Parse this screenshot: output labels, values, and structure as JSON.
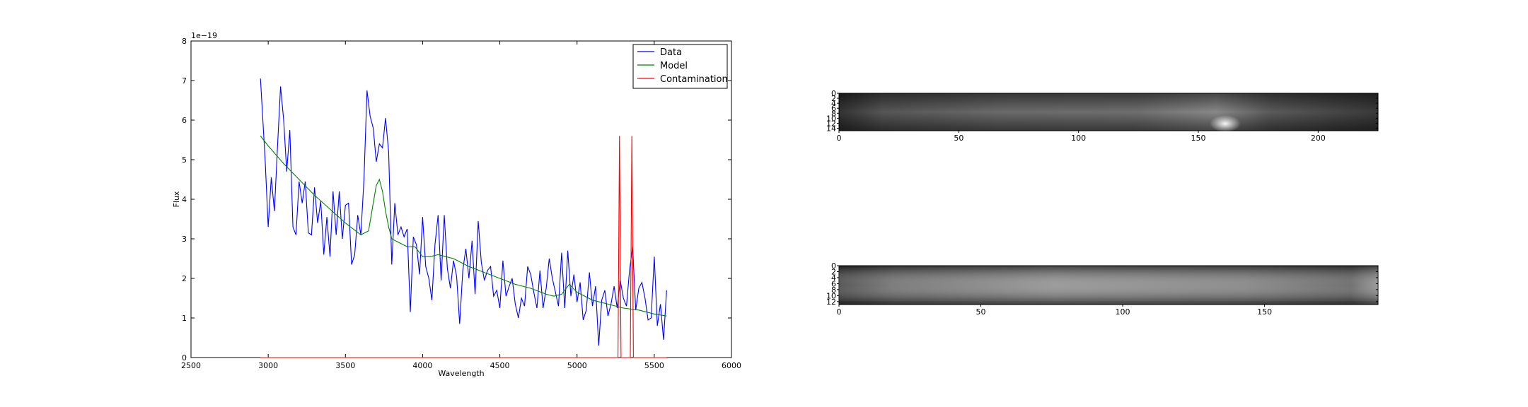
{
  "chart_data": [
    {
      "type": "line",
      "xlabel": "Wavelength",
      "ylabel": "Flux",
      "offset_text": "1e−19",
      "xlim": [
        2500,
        6000
      ],
      "ylim": [
        0,
        8
      ],
      "xticks": [
        2500,
        3000,
        3500,
        4000,
        4500,
        5000,
        5500,
        6000
      ],
      "yticks": [
        0,
        1,
        2,
        3,
        4,
        5,
        6,
        7,
        8
      ],
      "grid": false,
      "legend": "top-right",
      "series": [
        {
          "name": "Data",
          "color": "#0000ff",
          "x": [
            2950,
            2980,
            3000,
            3020,
            3040,
            3060,
            3080,
            3100,
            3120,
            3140,
            3160,
            3180,
            3200,
            3220,
            3240,
            3260,
            3280,
            3300,
            3320,
            3340,
            3360,
            3380,
            3400,
            3420,
            3440,
            3460,
            3480,
            3500,
            3520,
            3540,
            3560,
            3580,
            3600,
            3620,
            3640,
            3660,
            3680,
            3700,
            3720,
            3740,
            3760,
            3780,
            3800,
            3820,
            3840,
            3860,
            3880,
            3900,
            3920,
            3940,
            3960,
            3980,
            4000,
            4020,
            4040,
            4060,
            4080,
            4100,
            4120,
            4140,
            4160,
            4180,
            4200,
            4220,
            4240,
            4260,
            4280,
            4300,
            4320,
            4340,
            4360,
            4380,
            4400,
            4420,
            4440,
            4460,
            4480,
            4500,
            4520,
            4540,
            4560,
            4580,
            4600,
            4620,
            4640,
            4660,
            4680,
            4700,
            4720,
            4740,
            4760,
            4780,
            4800,
            4820,
            4840,
            4860,
            4880,
            4900,
            4920,
            4940,
            4960,
            4980,
            5000,
            5020,
            5040,
            5060,
            5080,
            5100,
            5120,
            5140,
            5160,
            5180,
            5200,
            5220,
            5240,
            5260,
            5280,
            5300,
            5320,
            5340,
            5360,
            5380,
            5400,
            5420,
            5440,
            5460,
            5480,
            5500,
            5520,
            5540,
            5560,
            5580
          ],
          "y": [
            7.05,
            5.0,
            3.3,
            4.55,
            3.7,
            5.3,
            6.85,
            6.0,
            4.7,
            5.75,
            3.3,
            3.1,
            4.45,
            3.9,
            4.45,
            3.15,
            3.1,
            4.3,
            3.4,
            3.95,
            2.6,
            3.55,
            2.55,
            4.2,
            3.1,
            4.2,
            3.0,
            3.85,
            3.9,
            2.35,
            2.6,
            3.6,
            3.1,
            4.5,
            6.75,
            6.1,
            5.8,
            4.95,
            5.4,
            5.3,
            6.05,
            5.2,
            2.35,
            3.9,
            3.1,
            3.3,
            3.05,
            3.25,
            1.15,
            3.05,
            2.85,
            2.1,
            3.55,
            2.3,
            2.0,
            1.45,
            2.85,
            3.6,
            1.95,
            3.6,
            2.25,
            1.75,
            2.45,
            2.05,
            0.85,
            2.2,
            2.75,
            2.0,
            2.95,
            1.6,
            3.45,
            2.4,
            1.95,
            2.2,
            2.3,
            1.55,
            1.7,
            1.25,
            2.45,
            1.55,
            1.8,
            2.0,
            1.35,
            1.0,
            1.5,
            1.3,
            2.3,
            2.1,
            1.65,
            1.25,
            2.2,
            1.25,
            1.75,
            2.5,
            2.0,
            1.65,
            1.3,
            2.65,
            1.25,
            2.7,
            1.55,
            2.1,
            1.4,
            1.9,
            0.95,
            1.2,
            2.15,
            1.3,
            1.8,
            0.3,
            1.45,
            1.7,
            1.05,
            1.35,
            1.8,
            1.25,
            1.95,
            1.5,
            1.3,
            2.2,
            2.8,
            1.2,
            1.75,
            1.9,
            1.5,
            0.95,
            1.0,
            2.55,
            0.8,
            1.35,
            0.45,
            1.7
          ]
        },
        {
          "name": "Model",
          "color": "#008000",
          "x": [
            2950,
            3000,
            3100,
            3200,
            3300,
            3400,
            3500,
            3600,
            3650,
            3680,
            3700,
            3720,
            3740,
            3760,
            3780,
            3800,
            3850,
            3900,
            3950,
            4000,
            4050,
            4100,
            4150,
            4200,
            4300,
            4400,
            4500,
            4600,
            4700,
            4800,
            4850,
            4900,
            4950,
            5000,
            5100,
            5200,
            5300,
            5400,
            5500,
            5580
          ],
          "y": [
            5.6,
            5.35,
            4.9,
            4.5,
            4.1,
            3.75,
            3.4,
            3.1,
            3.2,
            3.9,
            4.35,
            4.5,
            4.2,
            3.7,
            3.3,
            3.0,
            2.9,
            2.8,
            2.8,
            2.55,
            2.55,
            2.6,
            2.55,
            2.5,
            2.3,
            2.15,
            2.0,
            1.85,
            1.75,
            1.6,
            1.55,
            1.6,
            1.85,
            1.65,
            1.45,
            1.35,
            1.25,
            1.2,
            1.1,
            1.05
          ]
        },
        {
          "name": "Contamination",
          "color": "#ff0000",
          "x": [
            2950,
            5250,
            5265,
            5275,
            5285,
            5300,
            5330,
            5345,
            5355,
            5365,
            5380,
            5580
          ],
          "y": [
            0,
            0,
            0,
            5.6,
            0,
            0,
            0,
            0,
            5.6,
            0,
            0,
            0
          ]
        }
      ]
    },
    {
      "type": "heatmap",
      "xticks": [
        0,
        50,
        100,
        150,
        200
      ],
      "yticks": [
        0,
        2,
        4,
        6,
        8,
        10,
        12,
        14
      ],
      "xlim": [
        0,
        225
      ],
      "ylim": [
        15,
        0
      ],
      "colormap": "gray"
    },
    {
      "type": "heatmap",
      "xticks": [
        0,
        50,
        100,
        150
      ],
      "yticks": [
        0,
        2,
        4,
        6,
        8,
        10,
        12
      ],
      "xlim": [
        0,
        190
      ],
      "ylim": [
        13,
        0
      ],
      "colormap": "gray"
    }
  ]
}
